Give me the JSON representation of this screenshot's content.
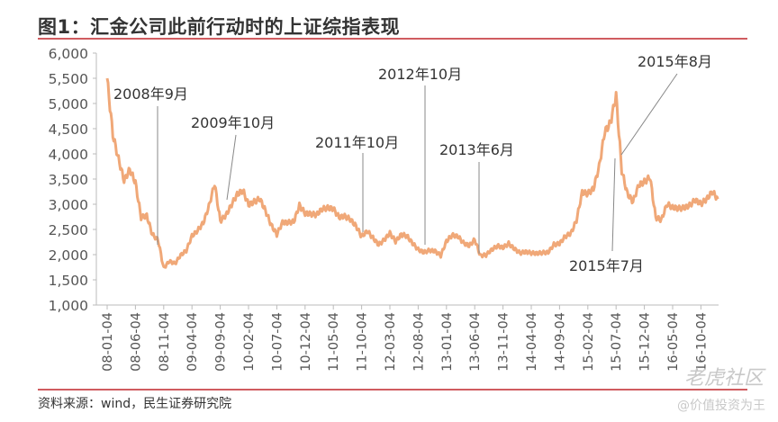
{
  "title": "图1：汇金公司此前行动时的上证综指表现",
  "source": "资料来源：wind，民生证券研究院",
  "watermark": {
    "community": "老虎社区",
    "handle": "@价值投资为王"
  },
  "colors": {
    "line": "#F0A878",
    "rule": "#C0262C",
    "axis": "#BBBBBB"
  },
  "chart_data": {
    "type": "line",
    "title": "汇金公司此前行动时的上证综指表现",
    "xlabel": "",
    "ylabel": "",
    "ylim": [
      1000,
      6000
    ],
    "yticks": [
      "1,000",
      "1,500",
      "2,000",
      "2,500",
      "3,000",
      "3,500",
      "4,000",
      "4,500",
      "5,000",
      "5,500",
      "6,000"
    ],
    "xticks": [
      "08-01-04",
      "08-06-04",
      "08-11-04",
      "09-04-04",
      "09-09-04",
      "10-02-04",
      "10-07-04",
      "10-12-04",
      "11-05-04",
      "11-10-04",
      "12-03-04",
      "12-08-04",
      "13-01-04",
      "13-06-04",
      "13-11-04",
      "14-04-04",
      "14-09-04",
      "15-02-04",
      "15-07-04",
      "15-12-04",
      "16-05-04",
      "16-10-04"
    ],
    "grid": false,
    "series": [
      {
        "name": "上证综指",
        "x_start": "2008-01",
        "x_step": "month",
        "values": [
          5500,
          4383,
          3900,
          3472,
          3693,
          3433,
          2736,
          2775,
          2397,
          2293,
          1729,
          1871,
          1820,
          1990,
          2082,
          2373,
          2477,
          2632,
          2959,
          3412,
          2667,
          2779,
          2995,
          3195,
          3277,
          2989,
          3051,
          3109,
          2870,
          2592,
          2398,
          2637,
          2638,
          2655,
          2978,
          2820,
          2808,
          2790,
          2905,
          2928,
          2911,
          2743,
          2762,
          2701,
          2567,
          2359,
          2468,
          2333,
          2199,
          2292,
          2428,
          2262,
          2396,
          2372,
          2225,
          2103,
          2047,
          2086,
          2068,
          1980,
          2269,
          2385,
          2365,
          2236,
          2177,
          2300,
          1979,
          1993,
          2098,
          2174,
          2141,
          2220,
          2116,
          2033,
          2056,
          2033,
          2026,
          2039,
          2048,
          2201,
          2217,
          2364,
          2420,
          2683,
          3235,
          3210,
          3310,
          3748,
          4442,
          4612,
          5166,
          3663,
          3206,
          3053,
          3382,
          3445,
          3539,
          2737,
          2688,
          3003,
          2938,
          2917,
          2930,
          2979,
          3085,
          3005,
          3100,
          3250,
          3104
        ]
      }
    ],
    "annotations": [
      {
        "text": "2008年9月",
        "month": "2008-09"
      },
      {
        "text": "2009年10月",
        "month": "2009-10"
      },
      {
        "text": "2011年10月",
        "month": "2011-10"
      },
      {
        "text": "2012年10月",
        "month": "2012-10"
      },
      {
        "text": "2013年6月",
        "month": "2013-06"
      },
      {
        "text": "2015年8月",
        "month": "2015-08"
      },
      {
        "text": "2015年7月",
        "month": "2015-07"
      }
    ]
  }
}
